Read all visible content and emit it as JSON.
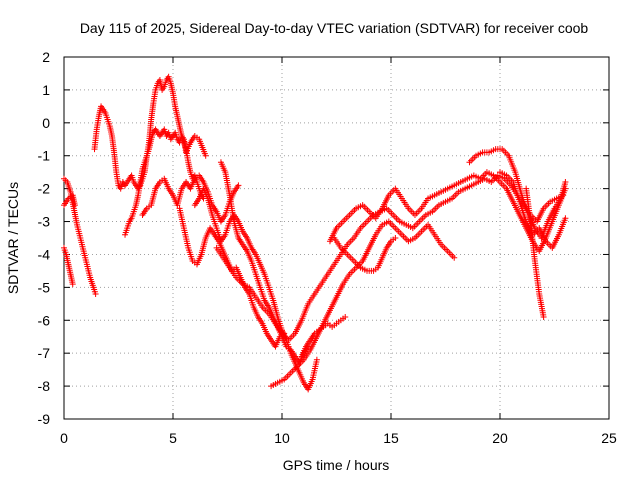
{
  "chart_data": {
    "type": "scatter",
    "title": "Day 115 of 2025, Sidereal Day-to-day VTEC variation (SDTVAR) for receiver coob",
    "xlabel": "GPS time / hours",
    "ylabel": "SDTVAR / TECUs",
    "xlim": [
      0,
      25
    ],
    "ylim": [
      -9,
      2
    ],
    "xticks": [
      0,
      5,
      10,
      15,
      20,
      25
    ],
    "yticks": [
      -9,
      -8,
      -7,
      -6,
      -5,
      -4,
      -3,
      -2,
      -1,
      0,
      1,
      2
    ],
    "grid": true,
    "marker": "+",
    "color": "#ff0000",
    "series": [
      {
        "x": [
          0.0,
          0.1,
          0.2,
          0.3,
          0.4
        ],
        "y": [
          -3.8,
          -4.0,
          -4.3,
          -4.6,
          -4.9
        ]
      },
      {
        "x": [
          0.0,
          0.15,
          0.3,
          0.45,
          0.6,
          0.75,
          0.9,
          1.05,
          1.2,
          1.35,
          1.45
        ],
        "y": [
          -1.7,
          -1.8,
          -2.1,
          -2.6,
          -3.1,
          -3.5,
          -3.9,
          -4.3,
          -4.7,
          -5.0,
          -5.2
        ]
      },
      {
        "x": [
          0.0,
          0.2,
          0.4,
          0.5
        ],
        "y": [
          -2.5,
          -2.3,
          -2.2,
          -2.5
        ]
      },
      {
        "x": [
          1.4,
          1.5,
          1.6,
          1.7,
          1.8,
          1.9,
          2.0,
          2.1,
          2.2,
          2.3,
          2.4,
          2.5,
          2.6,
          2.7,
          2.8,
          2.9,
          3.0,
          3.1,
          3.2,
          3.3,
          3.4,
          3.5,
          3.6,
          3.7,
          3.8,
          3.9,
          4.0,
          4.1,
          4.2,
          4.3,
          4.4,
          4.5,
          4.6,
          4.7,
          4.8,
          4.9,
          5.0,
          5.1,
          5.2,
          5.3,
          5.4,
          5.5,
          5.6,
          5.8,
          6.0,
          6.2,
          6.5
        ],
        "y": [
          -0.8,
          -0.2,
          0.2,
          0.5,
          0.4,
          0.3,
          0.1,
          -0.1,
          -0.4,
          -0.9,
          -1.5,
          -1.9,
          -2.0,
          -1.8,
          -1.9,
          -1.8,
          -1.7,
          -1.6,
          -1.8,
          -1.9,
          -2.0,
          -1.9,
          -1.7,
          -1.5,
          -1.0,
          -0.8,
          -0.5,
          -0.3,
          -0.2,
          -0.3,
          -0.4,
          -0.3,
          -0.2,
          -0.4,
          -0.3,
          -0.5,
          -0.4,
          -0.3,
          -0.5,
          -0.6,
          -0.4,
          -0.5,
          -0.9,
          -0.6,
          -0.4,
          -0.5,
          -1.0
        ]
      },
      {
        "x": [
          2.8,
          2.9,
          3.0,
          3.1,
          3.2,
          3.3,
          3.4,
          3.5,
          3.6,
          3.7,
          3.8,
          3.9,
          4.0,
          4.1,
          4.2,
          4.3,
          4.4,
          4.5,
          4.6,
          4.7,
          4.8,
          4.9,
          5.0,
          5.1,
          5.2,
          5.3,
          5.4,
          5.5,
          5.6,
          5.7,
          5.8,
          5.9,
          6.0,
          6.1,
          6.2,
          6.3,
          6.4
        ],
        "y": [
          -3.4,
          -3.2,
          -3.0,
          -2.9,
          -2.7,
          -2.5,
          -2.2,
          -1.8,
          -1.4,
          -1.2,
          -1.0,
          -0.6,
          0.1,
          0.6,
          1.0,
          1.2,
          1.3,
          1.0,
          1.1,
          1.3,
          1.4,
          1.2,
          0.9,
          0.5,
          0.2,
          -0.1,
          -0.4,
          -0.6,
          -0.8,
          -1.2,
          -1.5,
          -1.7,
          -1.6,
          -1.8,
          -2.0,
          -2.2,
          -2.3
        ]
      },
      {
        "x": [
          3.6,
          3.8,
          4.0,
          4.2,
          4.4,
          4.6,
          4.8,
          5.0,
          5.2,
          5.4,
          5.6,
          5.8,
          6.0,
          6.2,
          6.4,
          6.6,
          6.8,
          7.0,
          7.2,
          7.4,
          7.6,
          7.8,
          8.0
        ],
        "y": [
          -2.8,
          -2.6,
          -2.5,
          -2.0,
          -1.8,
          -1.7,
          -2.0,
          -2.2,
          -2.5,
          -2.0,
          -1.8,
          -2.0,
          -1.7,
          -1.6,
          -1.8,
          -2.1,
          -2.5,
          -2.7,
          -3.0,
          -2.8,
          -2.4,
          -2.1,
          -1.9
        ]
      },
      {
        "x": [
          5.3,
          5.5,
          5.7,
          5.9,
          6.1,
          6.3,
          6.5,
          6.7,
          6.9,
          7.1,
          7.3,
          7.5,
          7.7,
          7.9,
          8.1,
          8.3,
          8.5,
          8.7,
          8.9,
          9.1,
          9.3,
          9.5,
          9.7,
          9.9,
          10.1
        ],
        "y": [
          -2.6,
          -3.2,
          -3.8,
          -4.2,
          -4.3,
          -4.0,
          -3.5,
          -3.2,
          -3.4,
          -3.6,
          -3.9,
          -4.2,
          -4.5,
          -4.4,
          -4.7,
          -5.0,
          -5.2,
          -5.6,
          -5.9,
          -6.1,
          -6.4,
          -6.6,
          -6.8,
          -6.5,
          -6.4
        ]
      },
      {
        "x": [
          6.0,
          6.2,
          6.4,
          6.6,
          6.8,
          7.0,
          7.2,
          7.4,
          7.6,
          7.8,
          8.0,
          8.2,
          8.4,
          8.6,
          8.8,
          9.0,
          9.2,
          9.4,
          9.6,
          9.8,
          10.0,
          10.2,
          10.4,
          10.6,
          10.8,
          11.0,
          11.2,
          11.4,
          11.6
        ],
        "y": [
          -2.5,
          -2.3,
          -2.0,
          -2.3,
          -2.8,
          -3.2,
          -3.6,
          -3.4,
          -3.0,
          -2.8,
          -3.0,
          -3.3,
          -3.5,
          -3.8,
          -4.0,
          -4.3,
          -4.6,
          -5.0,
          -5.4,
          -5.9,
          -6.3,
          -6.6,
          -7.0,
          -7.3,
          -7.6,
          -7.9,
          -8.1,
          -7.8,
          -7.2
        ]
      },
      {
        "x": [
          7.2,
          7.4,
          7.6,
          7.8,
          8.0,
          8.2,
          8.4,
          8.6,
          8.8,
          9.0,
          9.2,
          9.4,
          9.6,
          9.8,
          10.0,
          10.2,
          10.4,
          10.6,
          10.8,
          11.0,
          11.2
        ],
        "y": [
          -1.2,
          -1.5,
          -2.2,
          -3.0,
          -3.5,
          -3.7,
          -3.9,
          -4.2,
          -4.6,
          -5.0,
          -5.4,
          -5.6,
          -5.9,
          -6.2,
          -6.5,
          -6.8,
          -6.9,
          -7.1,
          -7.3,
          -7.0,
          -6.8
        ]
      },
      {
        "x": [
          7.0,
          7.3,
          7.6,
          7.9,
          8.2,
          8.5,
          8.8,
          9.1,
          9.4,
          9.7,
          10.0,
          10.3,
          10.6,
          10.9,
          11.2,
          11.5,
          11.8,
          12.1,
          12.4,
          12.7,
          13.0,
          13.3,
          13.6,
          13.9,
          14.2,
          14.5,
          14.8,
          15.1,
          15.4,
          15.7,
          16.0,
          16.3,
          16.6,
          16.9,
          17.2,
          17.5,
          17.8,
          18.1,
          18.4,
          18.7,
          19.0,
          19.3,
          19.6,
          19.9,
          20.2,
          20.5,
          20.8,
          21.1,
          21.4,
          21.7,
          22.0,
          22.3,
          22.6,
          22.9
        ],
        "y": [
          -3.8,
          -4.1,
          -4.4,
          -4.7,
          -4.9,
          -5.0,
          -5.3,
          -5.6,
          -5.8,
          -6.1,
          -6.4,
          -6.6,
          -6.4,
          -6.0,
          -5.5,
          -5.2,
          -4.9,
          -4.6,
          -4.3,
          -4.0,
          -3.7,
          -3.5,
          -3.2,
          -3.0,
          -2.8,
          -2.7,
          -2.6,
          -2.8,
          -3.0,
          -3.1,
          -3.2,
          -3.0,
          -2.8,
          -2.7,
          -2.5,
          -2.4,
          -2.3,
          -2.1,
          -2.0,
          -1.9,
          -1.8,
          -1.7,
          -1.8,
          -1.6,
          -1.7,
          -1.9,
          -2.2,
          -2.5,
          -2.8,
          -3.0,
          -2.6,
          -2.4,
          -2.3,
          -2.2
        ]
      },
      {
        "x": [
          9.5,
          9.8,
          10.1,
          10.4,
          10.7,
          11.0,
          11.3,
          11.6,
          11.9,
          12.2,
          12.5,
          12.8,
          13.1,
          13.4,
          13.7,
          14.0,
          14.3,
          14.6,
          14.9,
          15.2,
          15.5,
          15.8,
          16.1,
          16.4,
          16.7,
          17.0,
          17.3,
          17.6,
          17.9
        ],
        "y": [
          -8.0,
          -7.9,
          -7.8,
          -7.6,
          -7.4,
          -7.2,
          -6.9,
          -6.5,
          -6.1,
          -5.7,
          -5.3,
          -4.9,
          -4.6,
          -4.4,
          -4.2,
          -3.8,
          -3.4,
          -3.1,
          -3.0,
          -3.2,
          -3.4,
          -3.6,
          -3.5,
          -3.3,
          -3.1,
          -3.4,
          -3.7,
          -3.9,
          -4.1
        ]
      },
      {
        "x": [
          10.9,
          11.1,
          11.3,
          11.5,
          11.7,
          11.9,
          12.1,
          12.3,
          12.5,
          12.7,
          12.9
        ],
        "y": [
          -7.1,
          -6.8,
          -6.6,
          -6.4,
          -6.3,
          -6.2,
          -6.1,
          -6.2,
          -6.1,
          -6.0,
          -5.9
        ]
      },
      {
        "x": [
          12.2,
          12.5,
          12.8,
          13.1,
          13.4,
          13.7,
          14.0,
          14.3,
          14.6,
          14.9,
          15.2,
          15.5,
          15.8,
          16.1,
          16.4,
          16.7,
          17.0,
          17.3,
          17.6,
          17.9,
          18.2,
          18.5,
          18.8,
          19.1,
          19.4,
          19.7,
          20.0,
          20.3,
          20.6,
          20.9,
          21.2,
          21.5,
          21.8,
          22.1,
          22.4,
          22.7,
          23.0
        ],
        "y": [
          -3.6,
          -3.2,
          -3.0,
          -2.8,
          -2.6,
          -2.5,
          -2.7,
          -2.9,
          -2.6,
          -2.2,
          -2.0,
          -2.3,
          -2.6,
          -2.8,
          -2.6,
          -2.3,
          -2.2,
          -2.1,
          -2.0,
          -1.9,
          -1.8,
          -1.7,
          -1.6,
          -1.7,
          -1.5,
          -1.6,
          -1.8,
          -2.0,
          -2.4,
          -2.8,
          -3.2,
          -3.6,
          -3.9,
          -3.5,
          -3.0,
          -2.5,
          -2.0
        ]
      },
      {
        "x": [
          12.4,
          12.7,
          13.0,
          13.3,
          13.6,
          13.9,
          14.2,
          14.4,
          14.6,
          14.8,
          15.0,
          15.2
        ],
        "y": [
          -3.5,
          -3.8,
          -4.0,
          -4.2,
          -4.4,
          -4.5,
          -4.5,
          -4.4,
          -4.1,
          -3.8,
          -3.6,
          -3.5
        ]
      },
      {
        "x": [
          18.6,
          18.9,
          19.2,
          19.5,
          19.8,
          20.1,
          20.4,
          20.7,
          21.0,
          21.3,
          21.6,
          21.9,
          22.2,
          22.5,
          22.8,
          23.0
        ],
        "y": [
          -1.2,
          -1.0,
          -0.9,
          -0.9,
          -0.8,
          -0.8,
          -1.0,
          -1.5,
          -2.2,
          -2.8,
          -3.2,
          -3.5,
          -3.0,
          -2.6,
          -2.3,
          -1.8
        ]
      },
      {
        "x": [
          20.0,
          20.3,
          20.6,
          20.9,
          21.2,
          21.5,
          21.8,
          22.1,
          22.4,
          22.7,
          23.0
        ],
        "y": [
          -1.5,
          -1.6,
          -1.8,
          -2.4,
          -3.0,
          -3.4,
          -3.2,
          -3.6,
          -3.8,
          -3.4,
          -2.9
        ]
      },
      {
        "x": [
          21.2,
          21.4,
          21.6,
          21.8,
          22.0
        ],
        "y": [
          -2.0,
          -3.0,
          -4.2,
          -5.2,
          -5.9
        ]
      }
    ]
  }
}
